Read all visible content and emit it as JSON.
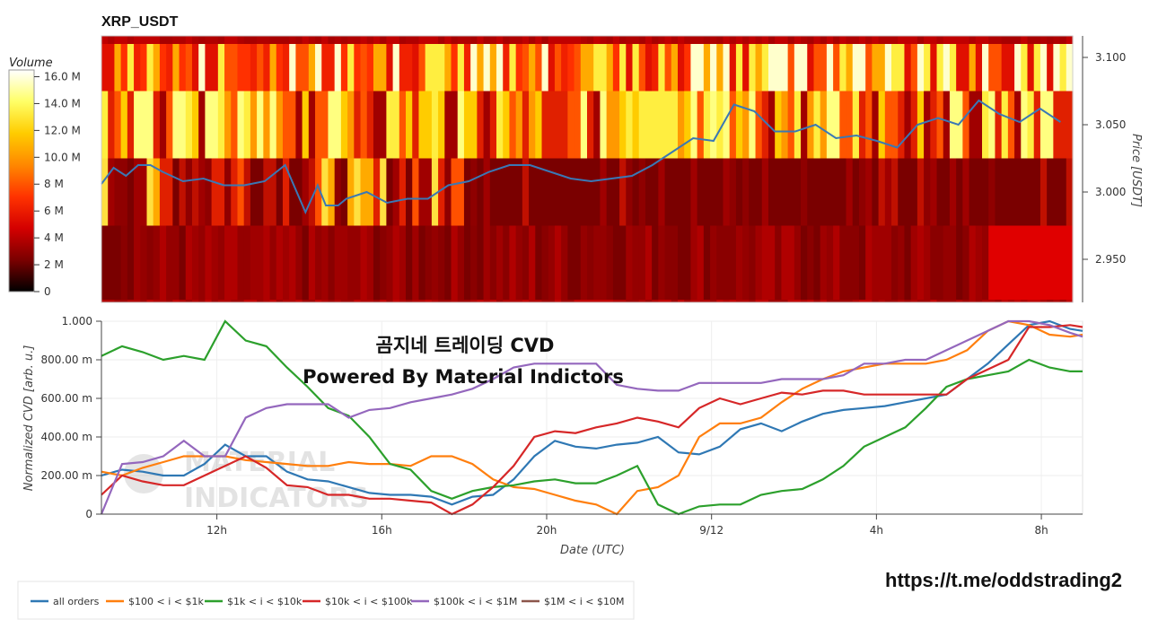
{
  "chart_data": [
    {
      "type": "heatmap",
      "title": "XRP_USDT",
      "ylabel": "Price [USDT]",
      "price_ticks": [
        "3.100",
        "3.050",
        "3.000",
        "2.950"
      ],
      "price_tick_values": [
        3.1,
        3.05,
        3.0,
        2.95
      ],
      "ylim": [
        2.918,
        3.116
      ],
      "colorbar": {
        "title": "Volume",
        "ticks": [
          "16.0 M",
          "14.0 M",
          "12.0 M",
          "10.0 M",
          "8 M",
          "6 M",
          "4 M",
          "2 M",
          "0"
        ],
        "range": [
          0,
          16.5
        ],
        "colors": [
          "#000000",
          "#7a0000",
          "#d40000",
          "#ff3300",
          "#ff8800",
          "#ffcc00",
          "#ffff66",
          "#ffffff"
        ]
      },
      "price_bands": [
        {
          "low": 2.918,
          "high": 2.92
        },
        {
          "low": 2.92,
          "high": 2.975
        },
        {
          "low": 2.975,
          "high": 3.025
        },
        {
          "low": 3.025,
          "high": 3.075
        },
        {
          "low": 3.075,
          "high": 3.11
        },
        {
          "low": 3.11,
          "high": 3.116
        }
      ],
      "price_series": {
        "name": "price",
        "color": "#3a78b5",
        "x_hours": [
          0,
          0.3,
          0.6,
          0.9,
          1.2,
          1.5,
          2,
          2.5,
          3,
          3.5,
          4,
          4.5,
          5,
          5.3,
          5.5,
          5.8,
          6,
          6.5,
          7,
          7.5,
          8,
          8.5,
          9,
          9.5,
          10,
          10.5,
          11,
          11.5,
          12,
          12.5,
          13,
          13.5,
          14,
          14.5,
          15,
          15.5,
          16,
          16.5,
          17,
          17.5,
          18,
          18.5,
          19,
          19.5,
          20,
          20.5,
          21,
          21.5,
          22,
          22.5,
          23,
          23.5
        ],
        "values": [
          3.006,
          3.018,
          3.012,
          3.02,
          3.02,
          3.015,
          3.008,
          3.01,
          3.005,
          3.005,
          3.008,
          3.02,
          2.985,
          3.005,
          2.99,
          2.99,
          2.995,
          3.0,
          2.992,
          2.995,
          2.995,
          3.005,
          3.008,
          3.015,
          3.02,
          3.02,
          3.015,
          3.01,
          3.008,
          3.01,
          3.012,
          3.02,
          3.03,
          3.04,
          3.038,
          3.065,
          3.06,
          3.045,
          3.045,
          3.05,
          3.04,
          3.042,
          3.038,
          3.033,
          3.05,
          3.055,
          3.05,
          3.068,
          3.058,
          3.052,
          3.062,
          3.052
        ]
      }
    },
    {
      "type": "line",
      "title": "",
      "xlabel": "Date (UTC)",
      "ylabel": "Normalized CVD [arb. u.]",
      "xlim_hours": [
        0,
        23.8
      ],
      "ylim": [
        0,
        1.0
      ],
      "x_ticks": [
        {
          "label": "12h",
          "hour": 2.8
        },
        {
          "label": "16h",
          "hour": 6.8
        },
        {
          "label": "20h",
          "hour": 10.8
        },
        {
          "label": "9/12",
          "hour": 14.8
        },
        {
          "label": "4h",
          "hour": 18.8
        },
        {
          "label": "8h",
          "hour": 22.8
        }
      ],
      "y_ticks": [
        {
          "label": "1.000",
          "value": 1.0
        },
        {
          "label": "800.00 m",
          "value": 0.8
        },
        {
          "label": "600.00 m",
          "value": 0.6
        },
        {
          "label": "400.00 m",
          "value": 0.4
        },
        {
          "label": "200.00 m",
          "value": 0.2
        },
        {
          "label": "0",
          "value": 0.0
        }
      ],
      "x_hours": [
        0,
        0.5,
        1,
        1.5,
        2,
        2.5,
        3,
        3.5,
        4,
        4.5,
        5,
        5.5,
        6,
        6.5,
        7,
        7.5,
        8,
        8.5,
        9,
        9.5,
        10,
        10.5,
        11,
        11.5,
        12,
        12.5,
        13,
        13.5,
        14,
        14.5,
        15,
        15.5,
        16,
        16.5,
        17,
        17.5,
        18,
        18.5,
        19,
        19.5,
        20,
        20.5,
        21,
        21.5,
        22,
        22.5,
        23,
        23.5,
        23.8
      ],
      "series": [
        {
          "name": "all orders",
          "color": "#2f78b4",
          "values": [
            0.2,
            0.23,
            0.22,
            0.2,
            0.2,
            0.26,
            0.36,
            0.3,
            0.3,
            0.22,
            0.18,
            0.17,
            0.14,
            0.11,
            0.1,
            0.1,
            0.09,
            0.05,
            0.09,
            0.1,
            0.18,
            0.3,
            0.38,
            0.35,
            0.34,
            0.36,
            0.37,
            0.4,
            0.32,
            0.31,
            0.35,
            0.44,
            0.47,
            0.43,
            0.48,
            0.52,
            0.54,
            0.55,
            0.56,
            0.58,
            0.6,
            0.62,
            0.7,
            0.78,
            0.88,
            0.98,
            1.0,
            0.96,
            0.95
          ]
        },
        {
          "name": "$100 < i < $1k",
          "color": "#ff7f0e",
          "values": [
            0.22,
            0.2,
            0.24,
            0.27,
            0.3,
            0.3,
            0.3,
            0.28,
            0.27,
            0.26,
            0.25,
            0.25,
            0.27,
            0.26,
            0.26,
            0.25,
            0.3,
            0.3,
            0.26,
            0.18,
            0.14,
            0.13,
            0.1,
            0.07,
            0.05,
            0.0,
            0.12,
            0.14,
            0.2,
            0.4,
            0.47,
            0.47,
            0.5,
            0.58,
            0.65,
            0.7,
            0.74,
            0.76,
            0.78,
            0.78,
            0.78,
            0.8,
            0.85,
            0.95,
            1.0,
            0.98,
            0.93,
            0.92,
            0.93
          ]
        },
        {
          "name": "$1k < i < $10k",
          "color": "#2ca02c",
          "values": [
            0.82,
            0.87,
            0.84,
            0.8,
            0.82,
            0.8,
            1.0,
            0.9,
            0.87,
            0.76,
            0.66,
            0.55,
            0.51,
            0.4,
            0.26,
            0.23,
            0.12,
            0.08,
            0.12,
            0.14,
            0.15,
            0.17,
            0.18,
            0.16,
            0.16,
            0.2,
            0.25,
            0.05,
            0.0,
            0.04,
            0.05,
            0.05,
            0.1,
            0.12,
            0.13,
            0.18,
            0.25,
            0.35,
            0.4,
            0.45,
            0.55,
            0.66,
            0.7,
            0.72,
            0.74,
            0.8,
            0.76,
            0.74,
            0.74
          ]
        },
        {
          "name": "$10k < i < $100k",
          "color": "#d62728",
          "values": [
            0.1,
            0.2,
            0.17,
            0.15,
            0.15,
            0.2,
            0.25,
            0.3,
            0.24,
            0.15,
            0.14,
            0.1,
            0.1,
            0.08,
            0.08,
            0.07,
            0.06,
            0.0,
            0.05,
            0.14,
            0.25,
            0.4,
            0.43,
            0.42,
            0.45,
            0.47,
            0.5,
            0.48,
            0.45,
            0.55,
            0.6,
            0.57,
            0.6,
            0.63,
            0.62,
            0.64,
            0.64,
            0.62,
            0.62,
            0.62,
            0.62,
            0.62,
            0.7,
            0.75,
            0.8,
            0.97,
            0.97,
            0.98,
            0.97
          ]
        },
        {
          "name": "$100k < i < $1M",
          "color": "#9467bd",
          "values": [
            0.0,
            0.26,
            0.27,
            0.3,
            0.38,
            0.3,
            0.3,
            0.5,
            0.55,
            0.57,
            0.57,
            0.57,
            0.5,
            0.54,
            0.55,
            0.58,
            0.6,
            0.62,
            0.65,
            0.7,
            0.76,
            0.78,
            0.78,
            0.78,
            0.78,
            0.67,
            0.65,
            0.64,
            0.64,
            0.68,
            0.68,
            0.68,
            0.68,
            0.7,
            0.7,
            0.7,
            0.72,
            0.78,
            0.78,
            0.8,
            0.8,
            0.85,
            0.9,
            0.95,
            1.0,
            1.0,
            0.98,
            0.94,
            0.92
          ]
        },
        {
          "name": "$1M < i < $10M",
          "color": "#8c564b",
          "values": []
        }
      ]
    }
  ],
  "overlay": {
    "line1": "곰지네 트레이딩 CVD",
    "line2": "Powered By Material Indictors",
    "watermark_line1": "MATERIAL",
    "watermark_line2": "INDICATORS",
    "url": "https://t.me/oddstrading2"
  }
}
